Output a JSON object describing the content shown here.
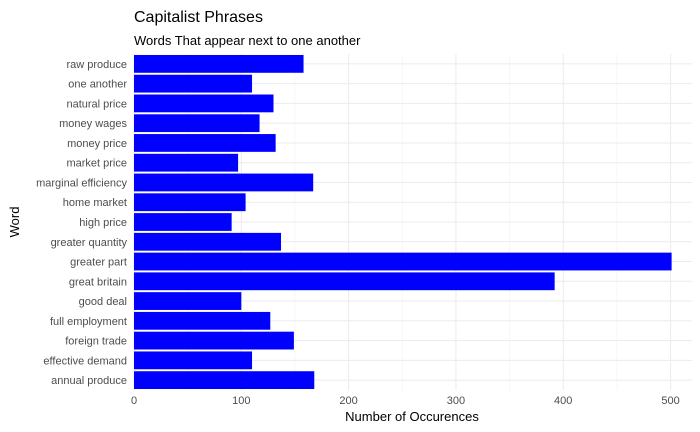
{
  "chart_data": {
    "type": "bar",
    "orientation": "horizontal",
    "title": "Capitalist Phrases",
    "subtitle": "Words That appear next to one another",
    "xlabel": "Number of Occurences",
    "ylabel": "Word",
    "xlim": [
      0,
      520
    ],
    "xticks": [
      0,
      100,
      200,
      300,
      400,
      500
    ],
    "bar_color": "#0000ff",
    "grid": true,
    "categories": [
      "raw produce",
      "one another",
      "natural price",
      "money wages",
      "money price",
      "market price",
      "marginal efficiency",
      "home market",
      "high price",
      "greater quantity",
      "greater part",
      "great britain",
      "good deal",
      "full employment",
      "foreign trade",
      "effective demand",
      "annual produce"
    ],
    "values": [
      158,
      110,
      130,
      117,
      132,
      97,
      167,
      104,
      91,
      137,
      501,
      392,
      100,
      127,
      149,
      110,
      168
    ]
  }
}
